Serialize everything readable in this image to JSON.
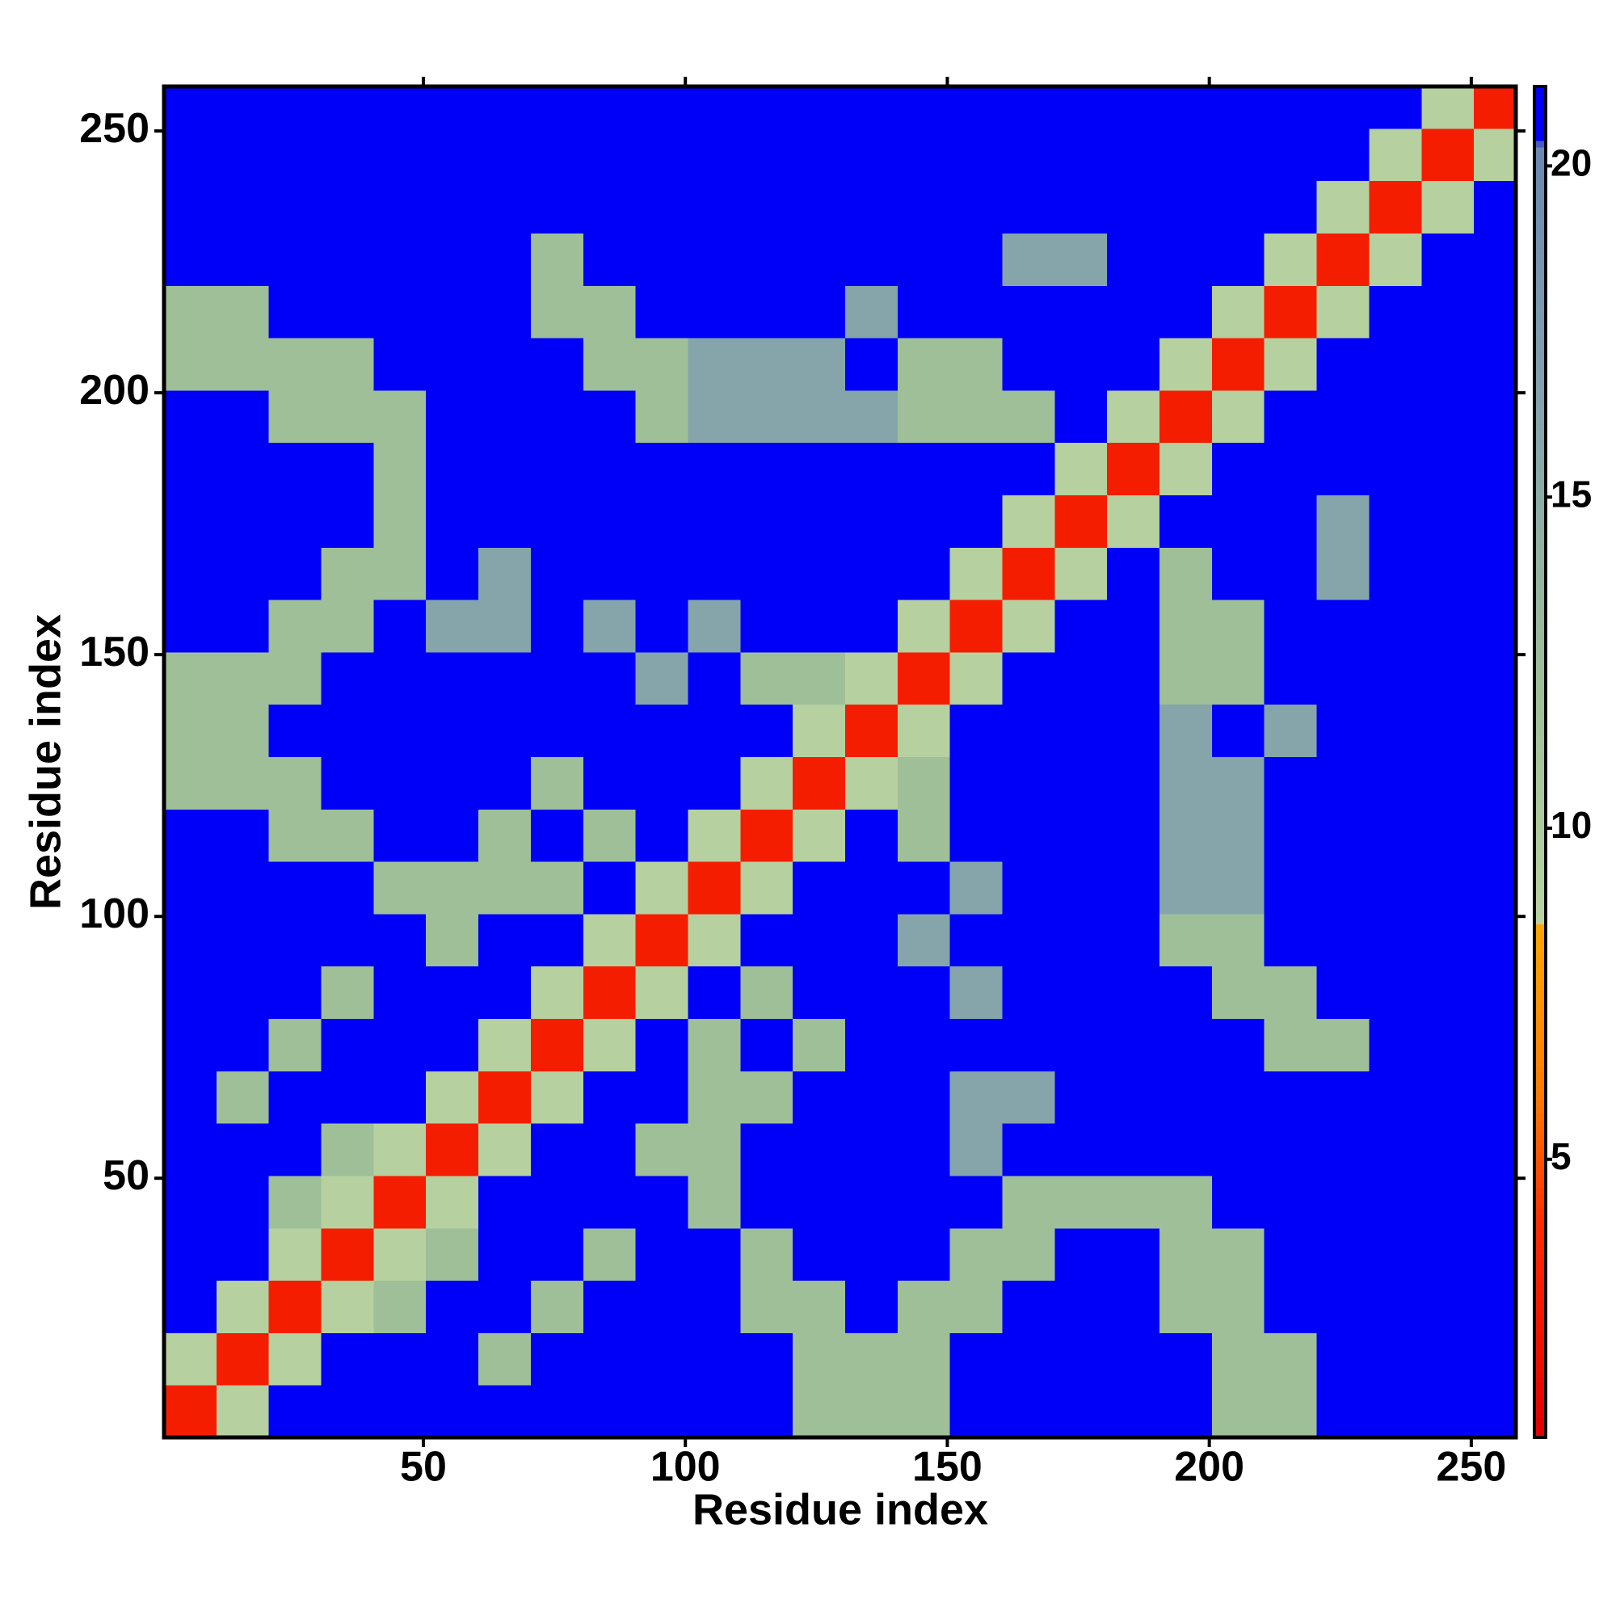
{
  "chart_data": {
    "type": "heatmap",
    "xlabel": "Residue index",
    "ylabel": "Residue index",
    "xbins": [
      0.5,
      10.5,
      20.5,
      30.5,
      40.5,
      50.5,
      60.5,
      70.5,
      80.5,
      90.5,
      100.5,
      110.5,
      120.5,
      130.5,
      140.5,
      150.5,
      160.5,
      170.5,
      180.5,
      190.5,
      200.5,
      210.5,
      220.5,
      230.5,
      240.5,
      250.5,
      258.5
    ],
    "ybins": [
      0.5,
      10.5,
      20.5,
      30.5,
      40.5,
      50.5,
      60.5,
      70.5,
      80.5,
      90.5,
      100.5,
      110.5,
      120.5,
      130.5,
      140.5,
      150.5,
      160.5,
      170.5,
      180.5,
      190.5,
      200.5,
      210.5,
      220.5,
      230.5,
      240.5,
      250.5,
      258.5
    ],
    "xlim": [
      0.5,
      258.5
    ],
    "ylim": [
      0.5,
      258.5
    ],
    "zlim": [
      0.8,
      21.2
    ],
    "xticks": [
      50,
      100,
      150,
      200,
      250
    ],
    "yticks": [
      50,
      100,
      150,
      200,
      250
    ],
    "zticks": [
      5,
      10,
      15,
      20
    ],
    "colorscale": [
      [
        0.8,
        "#e00000"
      ],
      [
        4,
        "#ff2a00"
      ],
      [
        6,
        "#ff7a00"
      ],
      [
        8.5,
        "#ffa500"
      ],
      [
        8.6,
        "#b9d2a0"
      ],
      [
        12,
        "#9fbf98"
      ],
      [
        17,
        "#7f9fb0"
      ],
      [
        20.3,
        "#6a88b0"
      ],
      [
        20.4,
        "#0000f8"
      ],
      [
        21.2,
        "#0000f8"
      ]
    ],
    "z": [
      [
        3,
        9,
        21,
        21,
        21,
        21,
        21,
        21,
        21,
        21,
        21,
        21,
        12,
        12,
        12,
        21,
        21,
        21,
        21,
        21,
        12,
        12,
        21,
        21,
        21,
        21
      ],
      [
        9,
        3,
        9,
        21,
        21,
        21,
        12,
        21,
        21,
        21,
        21,
        21,
        12,
        12,
        12,
        21,
        21,
        21,
        21,
        21,
        12,
        12,
        21,
        21,
        21,
        21
      ],
      [
        21,
        9,
        3,
        9,
        12,
        21,
        21,
        12,
        21,
        21,
        21,
        12,
        12,
        21,
        12,
        12,
        21,
        21,
        21,
        12,
        12,
        21,
        21,
        21,
        21,
        21
      ],
      [
        21,
        21,
        9,
        3,
        9,
        12,
        21,
        21,
        12,
        21,
        21,
        12,
        21,
        21,
        21,
        12,
        12,
        21,
        21,
        12,
        12,
        21,
        21,
        21,
        21,
        21
      ],
      [
        21,
        21,
        12,
        9,
        3,
        9,
        21,
        21,
        21,
        21,
        12,
        21,
        21,
        21,
        21,
        21,
        12,
        12,
        12,
        12,
        21,
        21,
        21,
        21,
        21,
        21
      ],
      [
        21,
        21,
        21,
        12,
        9,
        3,
        9,
        21,
        21,
        12,
        12,
        21,
        21,
        21,
        21,
        16,
        21,
        21,
        21,
        21,
        21,
        21,
        21,
        21,
        21,
        21
      ],
      [
        21,
        12,
        21,
        21,
        21,
        9,
        3,
        9,
        21,
        21,
        12,
        12,
        21,
        21,
        21,
        16,
        16,
        21,
        21,
        21,
        21,
        21,
        21,
        21,
        21,
        21
      ],
      [
        21,
        21,
        12,
        21,
        21,
        21,
        9,
        3,
        9,
        21,
        12,
        21,
        12,
        21,
        21,
        21,
        21,
        21,
        21,
        21,
        21,
        12,
        12,
        21,
        21,
        21
      ],
      [
        21,
        21,
        21,
        12,
        21,
        21,
        21,
        9,
        3,
        9,
        21,
        12,
        21,
        21,
        21,
        16,
        21,
        21,
        21,
        21,
        12,
        12,
        21,
        21,
        21,
        21
      ],
      [
        21,
        21,
        21,
        21,
        21,
        12,
        21,
        21,
        9,
        3,
        9,
        21,
        21,
        21,
        16,
        21,
        21,
        21,
        21,
        12,
        12,
        21,
        21,
        21,
        21,
        21
      ],
      [
        21,
        21,
        21,
        21,
        12,
        12,
        12,
        12,
        21,
        9,
        3,
        9,
        21,
        21,
        21,
        16,
        21,
        21,
        21,
        16,
        16,
        21,
        21,
        21,
        21,
        21
      ],
      [
        21,
        21,
        12,
        12,
        21,
        21,
        12,
        21,
        12,
        21,
        9,
        3,
        9,
        21,
        12,
        21,
        21,
        21,
        21,
        16,
        16,
        21,
        21,
        21,
        21,
        21
      ],
      [
        12,
        12,
        12,
        21,
        21,
        21,
        21,
        12,
        21,
        21,
        21,
        9,
        3,
        9,
        12,
        21,
        21,
        21,
        21,
        16,
        16,
        21,
        21,
        21,
        21,
        21
      ],
      [
        12,
        12,
        21,
        21,
        21,
        21,
        21,
        21,
        21,
        21,
        21,
        21,
        9,
        3,
        9,
        21,
        21,
        21,
        21,
        16,
        21,
        16,
        21,
        21,
        21,
        21
      ],
      [
        12,
        12,
        12,
        21,
        21,
        21,
        21,
        21,
        21,
        16,
        21,
        12,
        12,
        9,
        3,
        9,
        21,
        21,
        21,
        12,
        12,
        21,
        21,
        21,
        21,
        21
      ],
      [
        21,
        21,
        12,
        12,
        21,
        16,
        16,
        21,
        16,
        21,
        16,
        21,
        21,
        21,
        9,
        3,
        9,
        21,
        21,
        12,
        12,
        21,
        21,
        21,
        21,
        21
      ],
      [
        21,
        21,
        21,
        12,
        12,
        21,
        16,
        21,
        21,
        21,
        21,
        21,
        21,
        21,
        21,
        9,
        3,
        9,
        21,
        12,
        21,
        21,
        16,
        21,
        21,
        21
      ],
      [
        21,
        21,
        21,
        21,
        12,
        21,
        21,
        21,
        21,
        21,
        21,
        21,
        21,
        21,
        21,
        21,
        9,
        3,
        9,
        21,
        21,
        21,
        16,
        21,
        21,
        21
      ],
      [
        21,
        21,
        21,
        21,
        12,
        21,
        21,
        21,
        21,
        21,
        21,
        21,
        21,
        21,
        21,
        21,
        21,
        9,
        3,
        9,
        21,
        21,
        21,
        21,
        21,
        21
      ],
      [
        21,
        21,
        12,
        12,
        12,
        21,
        21,
        21,
        21,
        12,
        16,
        16,
        16,
        16,
        12,
        12,
        12,
        21,
        9,
        3,
        9,
        21,
        21,
        21,
        21,
        21
      ],
      [
        12,
        12,
        12,
        12,
        21,
        21,
        21,
        21,
        12,
        12,
        16,
        16,
        16,
        21,
        12,
        12,
        21,
        21,
        21,
        9,
        3,
        9,
        21,
        21,
        21,
        21
      ],
      [
        12,
        12,
        21,
        21,
        21,
        21,
        21,
        12,
        12,
        21,
        21,
        21,
        21,
        16,
        21,
        21,
        21,
        21,
        21,
        21,
        9,
        3,
        9,
        21,
        21,
        21
      ],
      [
        21,
        21,
        21,
        21,
        21,
        21,
        21,
        12,
        21,
        21,
        21,
        21,
        21,
        21,
        21,
        21,
        16,
        16,
        21,
        21,
        21,
        9,
        3,
        9,
        21,
        21
      ],
      [
        21,
        21,
        21,
        21,
        21,
        21,
        21,
        21,
        21,
        21,
        21,
        21,
        21,
        21,
        21,
        21,
        21,
        21,
        21,
        21,
        21,
        21,
        9,
        3,
        9,
        21
      ],
      [
        21,
        21,
        21,
        21,
        21,
        21,
        21,
        21,
        21,
        21,
        21,
        21,
        21,
        21,
        21,
        21,
        21,
        21,
        21,
        21,
        21,
        21,
        21,
        9,
        3,
        9
      ],
      [
        21,
        21,
        21,
        21,
        21,
        21,
        21,
        21,
        21,
        21,
        21,
        21,
        21,
        21,
        21,
        21,
        21,
        21,
        21,
        21,
        21,
        21,
        21,
        21,
        9,
        3
      ]
    ]
  }
}
